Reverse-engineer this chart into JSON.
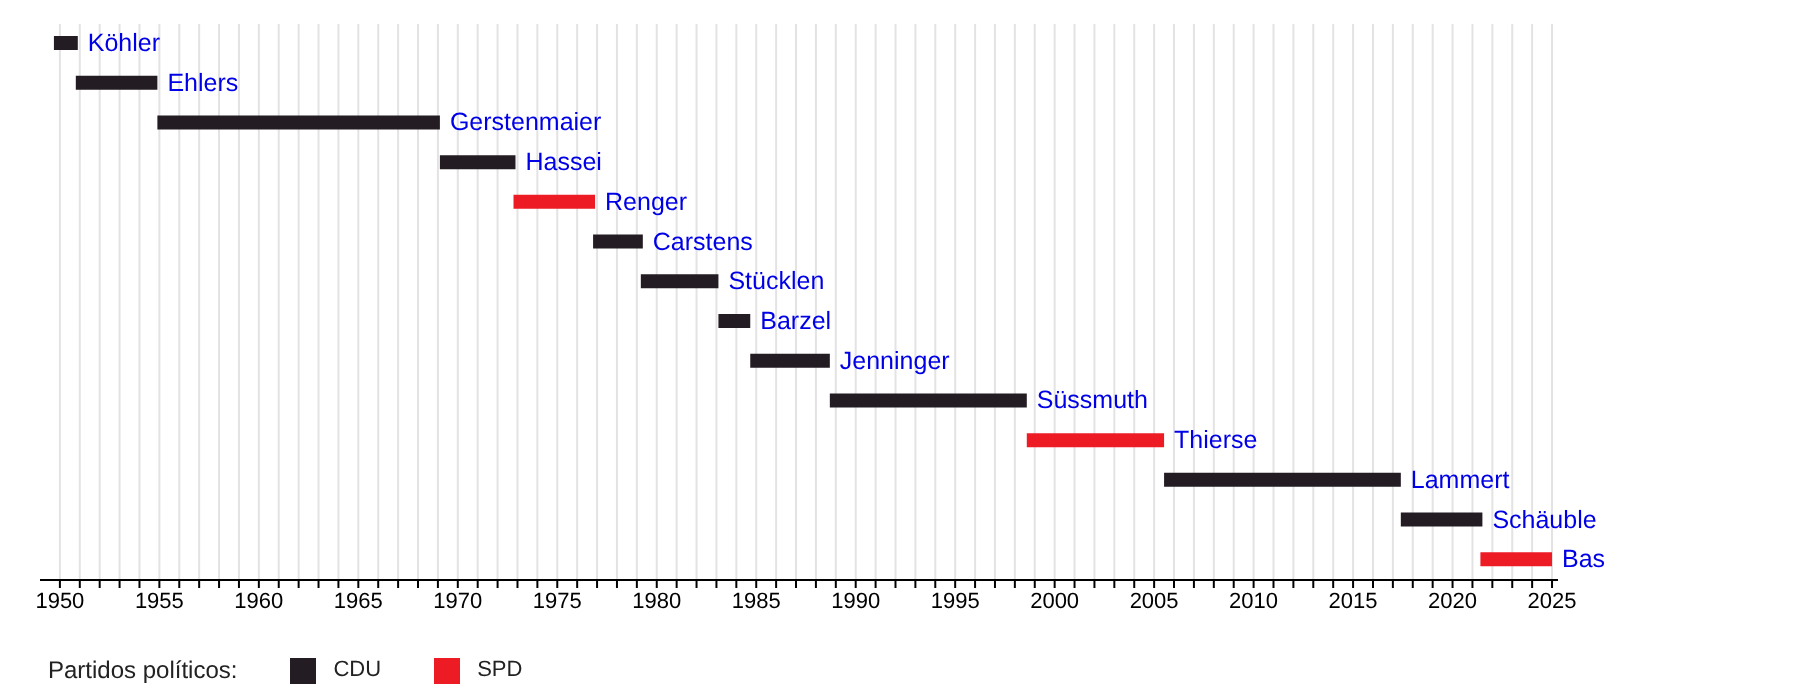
{
  "chart_data": {
    "type": "bar",
    "orientation": "horizontal",
    "legend_title": "Partidos políticos:",
    "legend": "bottom left",
    "grid": "x",
    "tick_labels": "x",
    "categories": [
      "Köhler",
      "Ehlers",
      "Gerstenmaier",
      "Hassei",
      "Renger",
      "Carstens",
      "Stücklen",
      "Barzel",
      "Jenninger",
      "Süssmuth",
      "Thierse",
      "Lammert",
      "Schäuble",
      "Bas"
    ],
    "series": [
      {
        "name": "CDU",
        "color": "#231c22",
        "base": [
          1949.7,
          1950.8,
          1954.9,
          1969.1,
          null,
          1976.8,
          1979.2,
          1983.1,
          1984.7,
          1988.7,
          null,
          2005.5,
          2017.4,
          null
        ],
        "values": [
          1.2,
          4.1,
          14.2,
          3.8,
          null,
          2.5,
          3.9,
          1.6,
          4.0,
          9.9,
          null,
          11.9,
          4.1,
          null
        ]
      },
      {
        "name": "SPD",
        "color": "#ed1c24",
        "base": [
          null,
          null,
          null,
          null,
          1972.8,
          null,
          null,
          null,
          null,
          null,
          1998.6,
          null,
          null,
          2021.4
        ],
        "values": [
          null,
          null,
          null,
          null,
          4.1,
          null,
          null,
          null,
          null,
          null,
          6.9,
          null,
          null,
          3.6
        ]
      }
    ],
    "xlim": [
      1949,
      2025.3
    ],
    "xticks": [
      1950,
      {
        "value": 1951,
        "label": null
      },
      {
        "value": 1952,
        "label": null
      },
      {
        "value": 1953,
        "label": null
      },
      {
        "value": 1954,
        "label": null
      },
      1955,
      {
        "value": 1956,
        "label": null
      },
      {
        "value": 1957,
        "label": null
      },
      {
        "value": 1958,
        "label": null
      },
      {
        "value": 1959,
        "label": null
      },
      1960,
      {
        "value": 1961,
        "label": null
      },
      {
        "value": 1962,
        "label": null
      },
      {
        "value": 1963,
        "label": null
      },
      {
        "value": 1964,
        "label": null
      },
      1965,
      {
        "value": 1966,
        "label": null
      },
      {
        "value": 1967,
        "label": null
      },
      {
        "value": 1968,
        "label": null
      },
      {
        "value": 1969,
        "label": null
      },
      1970,
      {
        "value": 1971,
        "label": null
      },
      {
        "value": 1972,
        "label": null
      },
      {
        "value": 1973,
        "label": null
      },
      {
        "value": 1974,
        "label": null
      },
      1975,
      {
        "value": 1976,
        "label": null
      },
      {
        "value": 1977,
        "label": null
      },
      {
        "value": 1978,
        "label": null
      },
      {
        "value": 1979,
        "label": null
      },
      1980,
      {
        "value": 1981,
        "label": null
      },
      {
        "value": 1982,
        "label": null
      },
      {
        "value": 1983,
        "label": null
      },
      {
        "value": 1984,
        "label": null
      },
      1985,
      {
        "value": 1986,
        "label": null
      },
      {
        "value": 1987,
        "label": null
      },
      {
        "value": 1988,
        "label": null
      },
      {
        "value": 1989,
        "label": null
      },
      1990,
      {
        "value": 1991,
        "label": null
      },
      {
        "value": 1992,
        "label": null
      },
      {
        "value": 1993,
        "label": null
      },
      {
        "value": 1994,
        "label": null
      },
      1995,
      {
        "value": 1996,
        "label": null
      },
      {
        "value": 1997,
        "label": null
      },
      {
        "value": 1998,
        "label": null
      },
      {
        "value": 1999,
        "label": null
      },
      2000,
      {
        "value": 2001,
        "label": null
      },
      {
        "value": 2002,
        "label": null
      },
      {
        "value": 2003,
        "label": null
      },
      {
        "value": 2004,
        "label": null
      },
      2005,
      {
        "value": 2006,
        "label": null
      },
      {
        "value": 2007,
        "label": null
      },
      {
        "value": 2008,
        "label": null
      },
      {
        "value": 2009,
        "label": null
      },
      2010,
      {
        "value": 2011,
        "label": null
      },
      {
        "value": 2012,
        "label": null
      },
      {
        "value": 2013,
        "label": null
      },
      {
        "value": 2014,
        "label": null
      },
      2015,
      {
        "value": 2016,
        "label": null
      },
      {
        "value": 2017,
        "label": null
      },
      {
        "value": 2018,
        "label": null
      },
      {
        "value": 2019,
        "label": null
      },
      2020,
      {
        "value": 2021,
        "label": null
      },
      {
        "value": 2022,
        "label": null
      },
      {
        "value": 2023,
        "label": null
      },
      {
        "value": 2024,
        "label": null
      },
      2025
    ]
  }
}
